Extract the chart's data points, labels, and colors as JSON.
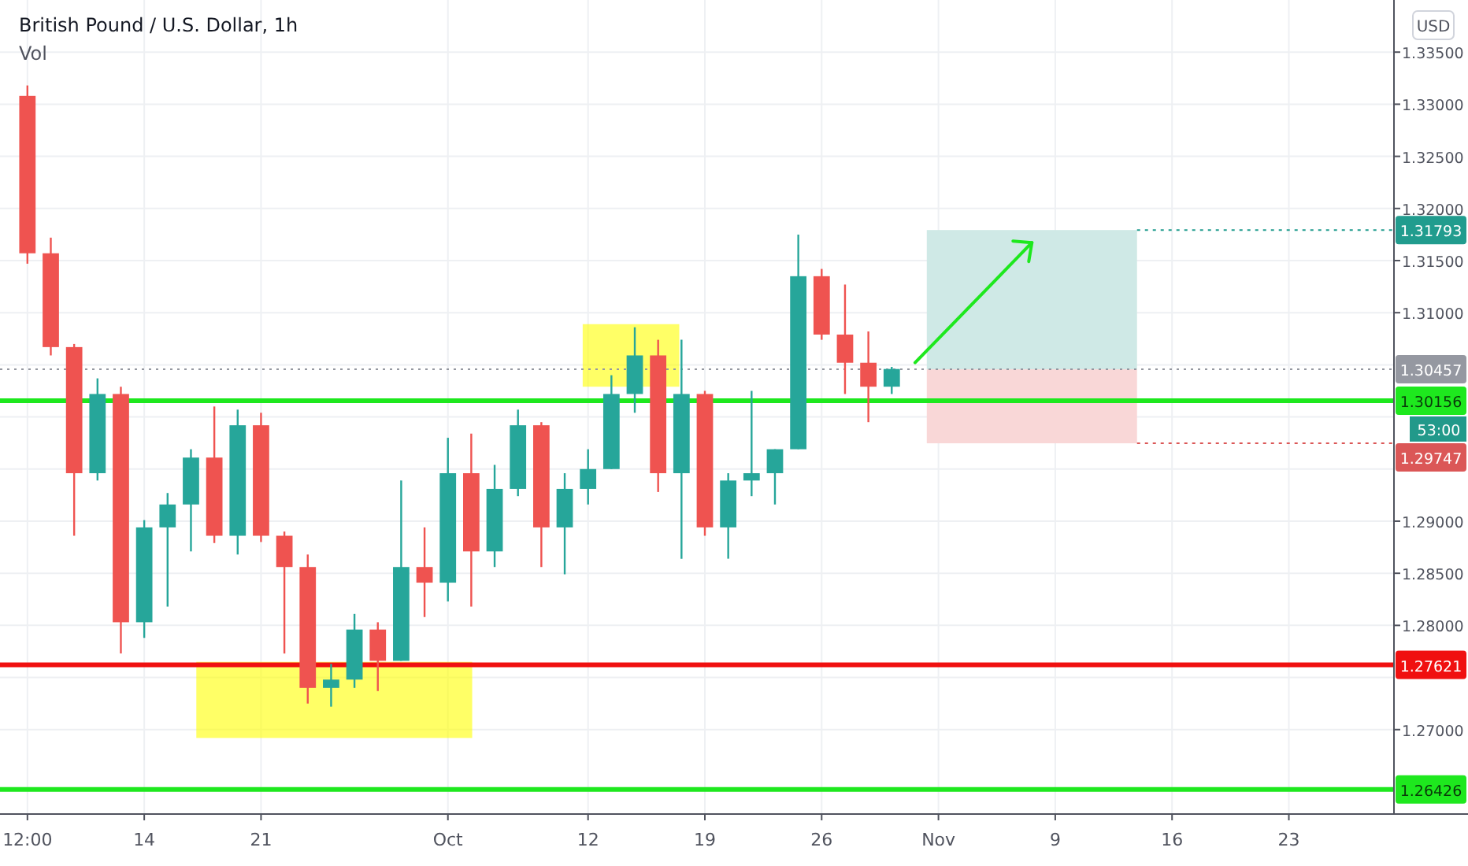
{
  "chart_data": {
    "type": "candlestick",
    "title": "British Pound / U.S. Dollar, 1h",
    "categories": [
      "12:00",
      null,
      null,
      null,
      null,
      "14",
      null,
      null,
      null,
      null,
      "21",
      null,
      null,
      null,
      null,
      null,
      null,
      null,
      "Oct",
      null,
      null,
      null,
      null,
      null,
      "12",
      null,
      null,
      null,
      null,
      "19",
      null,
      null,
      null,
      null,
      "26",
      null,
      null,
      null,
      null,
      "Nov",
      null,
      null,
      null,
      null,
      "9",
      null,
      null,
      null,
      null,
      "16",
      null,
      null,
      null,
      null,
      "23",
      null,
      null,
      null,
      null
    ],
    "ohlc": [
      [
        1.3308,
        1.3318,
        1.3147,
        1.3157
      ],
      [
        1.3157,
        1.3172,
        1.3059,
        1.3067
      ],
      [
        1.3067,
        1.307,
        1.2886,
        1.2946
      ],
      [
        1.2946,
        1.3037,
        1.2939,
        1.3022
      ],
      [
        1.3022,
        1.3029,
        1.2773,
        1.2803
      ],
      [
        1.2803,
        1.2901,
        1.2788,
        1.2894
      ],
      [
        1.2894,
        1.2927,
        1.2818,
        1.2916
      ],
      [
        1.2916,
        1.2969,
        1.2871,
        1.2961
      ],
      [
        1.2961,
        1.301,
        1.2879,
        1.2886
      ],
      [
        1.2886,
        1.3007,
        1.2868,
        1.2992
      ],
      [
        1.2992,
        1.3004,
        1.288,
        1.2886
      ],
      [
        1.2886,
        1.289,
        1.2773,
        1.2856
      ],
      [
        1.2856,
        1.2868,
        1.2725,
        1.274
      ],
      [
        1.274,
        1.2763,
        1.2722,
        1.2748
      ],
      [
        1.2748,
        1.2811,
        1.274,
        1.2796
      ],
      [
        1.2796,
        1.2803,
        1.2737,
        1.2766
      ],
      [
        1.2766,
        1.2939,
        1.2766,
        1.2856
      ],
      [
        1.2856,
        1.2894,
        1.2808,
        1.2841
      ],
      [
        1.2841,
        1.298,
        1.2823,
        1.2946
      ],
      [
        1.2946,
        1.2984,
        1.2818,
        1.2871
      ],
      [
        1.2871,
        1.2954,
        1.2856,
        1.2931
      ],
      [
        1.2931,
        1.3007,
        1.2924,
        1.2992
      ],
      [
        1.2992,
        1.2995,
        1.2856,
        1.2894
      ],
      [
        1.2894,
        1.2946,
        1.2849,
        1.2931
      ],
      [
        1.2931,
        1.2969,
        1.2916,
        1.295
      ],
      [
        1.295,
        1.304,
        1.295,
        1.3022
      ],
      [
        1.3022,
        1.3086,
        1.3004,
        1.3059
      ],
      [
        1.3059,
        1.3074,
        1.2928,
        1.2946
      ],
      [
        1.2946,
        1.3074,
        1.2864,
        1.3022
      ],
      [
        1.3022,
        1.3025,
        1.2886,
        1.2894
      ],
      [
        1.2894,
        1.2946,
        1.2864,
        1.2939
      ],
      [
        1.2939,
        1.3025,
        1.2924,
        1.2946
      ],
      [
        1.2946,
        1.2969,
        1.2916,
        1.2969
      ],
      [
        1.2969,
        1.3175,
        1.2969,
        1.3135
      ],
      [
        1.3135,
        1.3142,
        1.3074,
        1.3079
      ],
      [
        1.3079,
        1.3127,
        1.3022,
        1.3052
      ],
      [
        1.3052,
        1.3082,
        1.2995,
        1.3029
      ],
      [
        1.3029,
        1.3048,
        1.3022,
        1.3046
      ],
      null,
      null,
      null,
      null,
      null,
      null,
      null,
      null,
      null,
      null,
      null,
      null,
      null,
      null,
      null,
      null,
      null,
      null,
      null,
      null,
      null
    ],
    "ylim": [
      1.2619,
      1.34
    ],
    "yticks": [
      {
        "value": 1.335,
        "label": "1.33500"
      },
      {
        "value": 1.33,
        "label": "1.33000"
      },
      {
        "value": 1.325,
        "label": "1.32500"
      },
      {
        "value": 1.32,
        "label": "1.32000"
      },
      {
        "value": 1.315,
        "label": "1.31500"
      },
      {
        "value": 1.31,
        "label": "1.31000"
      },
      {
        "value": 1.305,
        "label": null
      },
      {
        "value": 1.3,
        "label": null
      },
      {
        "value": 1.295,
        "label": null
      },
      {
        "value": 1.29,
        "label": "1.29000"
      },
      {
        "value": 1.285,
        "label": "1.28500"
      },
      {
        "value": 1.28,
        "label": "1.28000"
      },
      {
        "value": 1.275,
        "label": null
      },
      {
        "value": 1.27,
        "label": "1.27000"
      }
    ],
    "grid": true,
    "ref_lines": [
      {
        "axis": "y",
        "value": 1.30457,
        "label": "1.30457",
        "color": "#9598a1",
        "line_style": "dotted"
      },
      {
        "axis": "y",
        "value": 1.30156,
        "label": "1.30156",
        "color": "#1ee81e",
        "line_style": "solid"
      },
      {
        "axis": "y",
        "value": 1.27621,
        "label": "1.27621",
        "color": "#f01010",
        "line_style": "solid"
      },
      {
        "axis": "y",
        "value": 1.26426,
        "label": "1.26426",
        "color": "#1ee81e",
        "line_style": "solid"
      }
    ],
    "bands": [
      {
        "axis": "y",
        "from": 1.30457,
        "to": 1.31793,
        "label": "1.31793",
        "color": "#cfe9e6"
      },
      {
        "axis": "y",
        "from": 1.29747,
        "to": 1.30457,
        "label": "1.29747",
        "color": "#f9d7d7"
      }
    ],
    "annotations": [
      "Vol",
      "USD",
      "53:00"
    ]
  }
}
